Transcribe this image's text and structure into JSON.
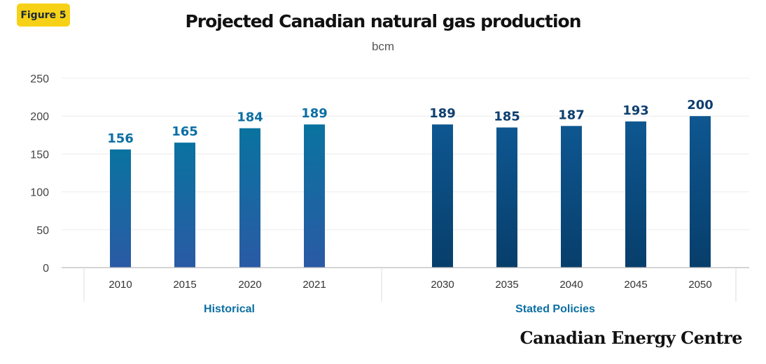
{
  "badge": "Figure 5",
  "chart_data": {
    "type": "bar",
    "title": "Projected Canadian natural gas production",
    "subtitle": "bcm",
    "ylim": [
      0,
      250
    ],
    "yticks": [
      0,
      50,
      100,
      150,
      200,
      250
    ],
    "grid": true,
    "groups": [
      {
        "name": "Historical",
        "color_top": "#0a73a0",
        "color_bottom": "#2a5aa4",
        "label_color": "#0b6fa3",
        "categories": [
          "2010",
          "2015",
          "2020",
          "2021"
        ],
        "values": [
          156,
          165,
          184,
          189
        ]
      },
      {
        "name": "Stated Policies",
        "color_top": "#0e5791",
        "color_bottom": "#073e6b",
        "label_color": "#0e3f6e",
        "categories": [
          "2030",
          "2035",
          "2040",
          "2045",
          "2050"
        ],
        "values": [
          189,
          185,
          187,
          193,
          200
        ]
      }
    ]
  },
  "brand": "Canadian Energy Centre"
}
